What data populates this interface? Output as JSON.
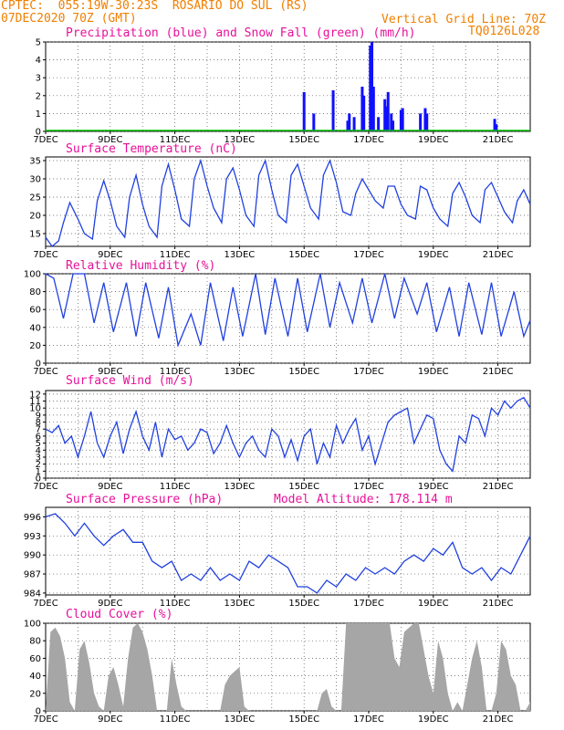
{
  "header": {
    "line1": "CPTEC:  055:19W-30:23S  ROSARIO DO SUL (RS)",
    "line2": "07DEC2020 70Z (GMT)",
    "grid_note": "Vertical Grid Line: 70Z",
    "model_code": "TQ0126L028"
  },
  "colors": {
    "header": "#f07f00",
    "panel_title": "#e8109a",
    "precip": "#1010ff",
    "snow": "#00c000",
    "line": "#2040e0",
    "cloud": "#a6a6a6",
    "wind_arrow": "#000000"
  },
  "chart_data": [
    {
      "id": "precip",
      "type": "bar",
      "title": "Precipitation (blue) and Snow Fall (green) (mm/h)",
      "x_ticks": [
        "7DEC",
        "9DEC",
        "11DEC",
        "13DEC",
        "15DEC",
        "17DEC",
        "19DEC",
        "21DEC"
      ],
      "y_ticks": [
        "0",
        "1",
        "2",
        "3",
        "4",
        "5"
      ],
      "ylim": [
        0,
        5
      ],
      "x_unit": "day offset from 7DEC",
      "series": [
        {
          "name": "Precipitation",
          "x": [
            8.0,
            8.3,
            8.9,
            9.35,
            9.4,
            9.55,
            9.8,
            9.85,
            10.05,
            10.1,
            10.15,
            10.3,
            10.5,
            10.55,
            10.6,
            10.7,
            10.75,
            11.0,
            11.05,
            11.6,
            11.75,
            11.8,
            13.9,
            13.95
          ],
          "values": [
            2.2,
            1.0,
            2.3,
            0.6,
            1.0,
            0.8,
            2.5,
            2.0,
            4.8,
            5.0,
            2.5,
            0.8,
            1.8,
            1.4,
            2.2,
            1.0,
            0.6,
            1.2,
            1.3,
            1.0,
            1.3,
            1.0,
            0.7,
            0.4
          ]
        },
        {
          "name": "Snow Fall",
          "x": [],
          "values": []
        }
      ]
    },
    {
      "id": "temp",
      "type": "line",
      "title": "Surface Temperature (nC)",
      "x_ticks": [
        "7DEC",
        "9DEC",
        "11DEC",
        "13DEC",
        "15DEC",
        "17DEC",
        "19DEC",
        "21DEC"
      ],
      "y_ticks": [
        "15",
        "20",
        "25",
        "30",
        "35"
      ],
      "ylim": [
        11.5,
        36
      ],
      "x": [
        0,
        0.2,
        0.4,
        0.55,
        0.75,
        1.0,
        1.2,
        1.45,
        1.6,
        1.8,
        2.0,
        2.2,
        2.45,
        2.6,
        2.8,
        3.0,
        3.2,
        3.45,
        3.6,
        3.8,
        4.0,
        4.2,
        4.45,
        4.6,
        4.8,
        5.0,
        5.2,
        5.45,
        5.6,
        5.8,
        6.0,
        6.2,
        6.45,
        6.6,
        6.8,
        7.0,
        7.2,
        7.45,
        7.6,
        7.8,
        8.0,
        8.2,
        8.45,
        8.6,
        8.8,
        9.0,
        9.2,
        9.45,
        9.6,
        9.8,
        10.0,
        10.2,
        10.45,
        10.6,
        10.8,
        11.0,
        11.2,
        11.45,
        11.6,
        11.8,
        12.0,
        12.2,
        12.45,
        12.6,
        12.8,
        13.0,
        13.2,
        13.45,
        13.6,
        13.8,
        14.0,
        14.2,
        14.45,
        14.6,
        14.8,
        15.0
      ],
      "values": [
        14,
        11.5,
        13,
        18,
        23.5,
        19,
        15,
        13.5,
        24,
        29.5,
        24,
        17,
        14,
        25,
        31,
        23,
        17,
        14,
        28,
        34,
        27,
        19,
        17,
        30,
        35,
        28,
        22,
        18,
        30,
        33,
        27,
        20,
        17,
        31,
        35,
        27,
        20,
        18,
        31,
        34,
        28,
        22,
        19,
        31,
        35,
        29,
        21,
        20,
        26,
        30,
        27,
        24,
        22,
        28,
        28,
        23,
        20,
        19,
        28,
        27,
        22,
        19,
        17,
        26,
        29,
        25,
        20,
        18,
        27,
        29,
        25,
        21,
        18,
        24,
        27,
        23
      ]
    },
    {
      "id": "rh",
      "type": "line",
      "title": "Relative Humidity (%)",
      "x_ticks": [
        "7DEC",
        "9DEC",
        "11DEC",
        "13DEC",
        "15DEC",
        "17DEC",
        "19DEC",
        "21DEC"
      ],
      "y_ticks": [
        "0",
        "20",
        "40",
        "60",
        "80",
        "100"
      ],
      "ylim": [
        0,
        100
      ],
      "x": [
        0,
        0.25,
        0.55,
        0.85,
        1.2,
        1.5,
        1.8,
        2.1,
        2.5,
        2.8,
        3.1,
        3.5,
        3.8,
        4.1,
        4.5,
        4.8,
        5.1,
        5.5,
        5.8,
        6.1,
        6.5,
        6.8,
        7.1,
        7.5,
        7.8,
        8.1,
        8.5,
        8.8,
        9.1,
        9.5,
        9.8,
        10.1,
        10.5,
        10.8,
        11.1,
        11.5,
        11.8,
        12.1,
        12.5,
        12.8,
        13.1,
        13.5,
        13.8,
        14.1,
        14.5,
        14.8,
        15.0
      ],
      "values": [
        100,
        95,
        50,
        100,
        100,
        45,
        90,
        35,
        90,
        30,
        90,
        28,
        85,
        20,
        55,
        20,
        90,
        25,
        85,
        30,
        100,
        32,
        95,
        30,
        95,
        35,
        100,
        40,
        90,
        45,
        95,
        45,
        100,
        50,
        95,
        55,
        90,
        35,
        85,
        30,
        90,
        32,
        90,
        30,
        80,
        30,
        48
      ]
    },
    {
      "id": "wind",
      "type": "line",
      "title": "Surface Wind (m/s)",
      "x_ticks": [
        "7DEC",
        "9DEC",
        "11DEC",
        "13DEC",
        "15DEC",
        "17DEC",
        "19DEC",
        "21DEC"
      ],
      "y_ticks": [
        "0",
        "1",
        "2",
        "3",
        "4",
        "5",
        "6",
        "7",
        "8",
        "9",
        "10",
        "11",
        "12"
      ],
      "ylim": [
        0,
        12.5
      ],
      "x": [
        0,
        0.2,
        0.4,
        0.6,
        0.8,
        1.0,
        1.2,
        1.4,
        1.6,
        1.8,
        2.0,
        2.2,
        2.4,
        2.6,
        2.8,
        3.0,
        3.2,
        3.4,
        3.6,
        3.8,
        4.0,
        4.2,
        4.4,
        4.6,
        4.8,
        5.0,
        5.2,
        5.4,
        5.6,
        5.8,
        6.0,
        6.2,
        6.4,
        6.6,
        6.8,
        7.0,
        7.2,
        7.4,
        7.6,
        7.8,
        8.0,
        8.2,
        8.4,
        8.6,
        8.8,
        9.0,
        9.2,
        9.4,
        9.6,
        9.8,
        10.0,
        10.2,
        10.4,
        10.6,
        10.8,
        11.0,
        11.2,
        11.4,
        11.6,
        11.8,
        12.0,
        12.2,
        12.4,
        12.6,
        12.8,
        13.0,
        13.2,
        13.4,
        13.6,
        13.8,
        14.0,
        14.2,
        14.4,
        14.6,
        14.8,
        15.0
      ],
      "values": [
        7,
        6.5,
        7.5,
        5,
        6,
        3,
        6,
        9.5,
        5,
        3,
        6,
        8,
        3.5,
        7,
        9.5,
        6,
        4,
        8,
        3,
        7,
        5.5,
        6,
        4,
        5,
        7,
        6.5,
        3.5,
        5,
        7.5,
        5,
        3,
        5,
        6,
        4,
        3,
        7,
        6,
        3,
        5.5,
        2.5,
        6,
        7,
        2,
        5,
        3,
        7.5,
        5,
        7,
        8.5,
        4,
        6,
        2,
        5,
        8,
        9,
        9.5,
        10,
        5,
        7,
        9,
        8.5,
        4,
        2,
        1,
        6,
        5,
        9,
        8.5,
        6,
        10,
        9,
        11,
        10,
        11,
        11.5,
        10
      ]
    },
    {
      "id": "pres",
      "type": "line",
      "title": "Surface Pressure (hPa)",
      "annotation": "Model Altitude: 178.114 m",
      "x_ticks": [
        "7DEC",
        "9DEC",
        "11DEC",
        "13DEC",
        "15DEC",
        "17DEC",
        "19DEC",
        "21DEC"
      ],
      "y_ticks": [
        "984",
        "987",
        "990",
        "993",
        "996"
      ],
      "ylim": [
        983.7,
        997.5
      ],
      "x": [
        0,
        0.3,
        0.6,
        0.9,
        1.2,
        1.5,
        1.8,
        2.1,
        2.4,
        2.7,
        3.0,
        3.3,
        3.6,
        3.9,
        4.2,
        4.5,
        4.8,
        5.1,
        5.4,
        5.7,
        6.0,
        6.3,
        6.6,
        6.9,
        7.2,
        7.5,
        7.8,
        8.1,
        8.4,
        8.7,
        9.0,
        9.3,
        9.6,
        9.9,
        10.2,
        10.5,
        10.8,
        11.1,
        11.4,
        11.7,
        12.0,
        12.3,
        12.6,
        12.9,
        13.2,
        13.5,
        13.8,
        14.1,
        14.4,
        14.7,
        15.0
      ],
      "values": [
        996,
        996.5,
        995,
        993,
        995,
        993,
        991.5,
        993,
        994,
        992,
        992,
        989,
        988,
        989,
        986,
        987,
        986,
        988,
        986,
        987,
        986,
        989,
        988,
        990,
        989,
        988,
        985,
        985,
        984,
        986,
        985,
        987,
        986,
        988,
        987,
        988,
        987,
        989,
        990,
        989,
        991,
        990,
        992,
        988,
        987,
        988,
        986,
        988,
        987,
        990,
        993
      ]
    },
    {
      "id": "cloud",
      "type": "area",
      "title": "Cloud Cover (%)",
      "x_ticks": [
        "7DEC",
        "9DEC",
        "11DEC",
        "13DEC",
        "15DEC",
        "17DEC",
        "19DEC",
        "21DEC"
      ],
      "y_ticks": [
        "0",
        "20",
        "40",
        "60",
        "80",
        "100"
      ],
      "ylim": [
        0,
        100
      ],
      "x": [
        0,
        0.15,
        0.3,
        0.45,
        0.6,
        0.75,
        0.9,
        1.05,
        1.2,
        1.35,
        1.5,
        1.65,
        1.8,
        1.95,
        2.1,
        2.25,
        2.4,
        2.55,
        2.7,
        2.85,
        3.0,
        3.15,
        3.3,
        3.45,
        3.6,
        3.75,
        3.9,
        4.05,
        4.2,
        4.35,
        4.5,
        4.65,
        4.8,
        4.95,
        5.1,
        5.25,
        5.4,
        5.55,
        5.7,
        5.85,
        6.0,
        6.15,
        6.3,
        6.45,
        6.6,
        6.75,
        6.9,
        7.05,
        7.2,
        7.35,
        7.5,
        7.65,
        7.8,
        7.95,
        8.1,
        8.25,
        8.4,
        8.55,
        8.7,
        8.85,
        9.0,
        9.15,
        9.3,
        9.45,
        9.6,
        9.75,
        9.9,
        10.05,
        10.2,
        10.35,
        10.5,
        10.65,
        10.8,
        10.95,
        11.1,
        11.25,
        11.4,
        11.55,
        11.7,
        11.85,
        12.0,
        12.15,
        12.3,
        12.45,
        12.6,
        12.75,
        12.9,
        13.05,
        13.2,
        13.35,
        13.5,
        13.65,
        13.8,
        13.95,
        14.1,
        14.25,
        14.4,
        14.55,
        14.7,
        14.85,
        15.0
      ],
      "values": [
        0,
        90,
        95,
        85,
        60,
        10,
        0,
        70,
        80,
        55,
        20,
        5,
        0,
        40,
        50,
        30,
        5,
        60,
        95,
        100,
        90,
        70,
        40,
        0,
        0,
        0,
        60,
        30,
        5,
        0,
        0,
        0,
        0,
        0,
        0,
        0,
        0,
        30,
        40,
        45,
        50,
        5,
        0,
        0,
        0,
        0,
        0,
        0,
        0,
        0,
        0,
        0,
        0,
        0,
        0,
        0,
        0,
        20,
        25,
        5,
        0,
        0,
        100,
        100,
        100,
        100,
        100,
        100,
        100,
        100,
        100,
        100,
        60,
        50,
        90,
        95,
        100,
        100,
        70,
        40,
        20,
        80,
        60,
        20,
        0,
        10,
        0,
        30,
        60,
        80,
        50,
        0,
        0,
        20,
        80,
        70,
        40,
        30,
        0,
        0,
        10
      ]
    }
  ]
}
